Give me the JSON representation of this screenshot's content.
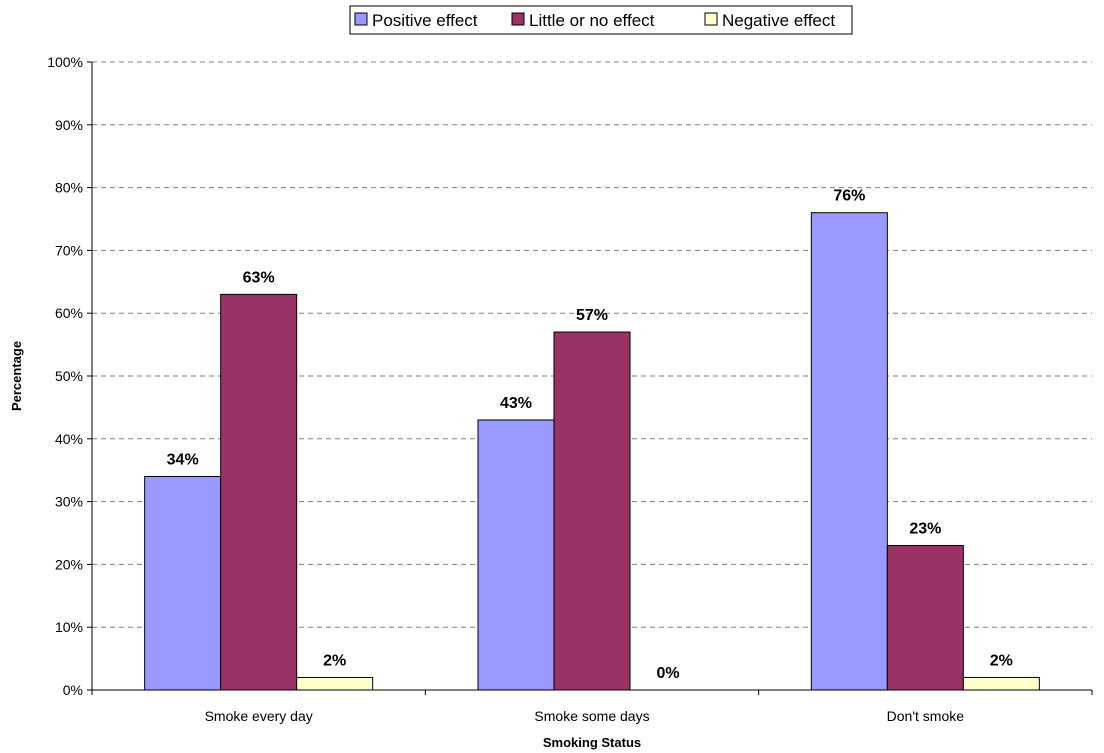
{
  "chart_data": {
    "type": "bar",
    "title": "",
    "xlabel": "Smoking Status",
    "ylabel": "Percentage",
    "categories": [
      "Smoke every day",
      "Smoke some days",
      "Don't smoke"
    ],
    "series": [
      {
        "name": "Positive effect",
        "color": "#9999ff",
        "values": [
          34,
          43,
          76
        ],
        "labels": [
          "34%",
          "43%",
          "76%"
        ]
      },
      {
        "name": "Little or no effect",
        "color": "#993366",
        "values": [
          63,
          57,
          23
        ],
        "labels": [
          "63%",
          "57%",
          "23%"
        ]
      },
      {
        "name": "Negative effect",
        "color": "#ffffcc",
        "values": [
          2,
          0,
          2
        ],
        "labels": [
          "2%",
          "0%",
          "2%"
        ]
      }
    ],
    "ylim": [
      0,
      100
    ],
    "yticks": [
      "0%",
      "10%",
      "20%",
      "30%",
      "40%",
      "50%",
      "60%",
      "70%",
      "80%",
      "90%",
      "100%"
    ],
    "grid": true,
    "legend_position": "top"
  }
}
